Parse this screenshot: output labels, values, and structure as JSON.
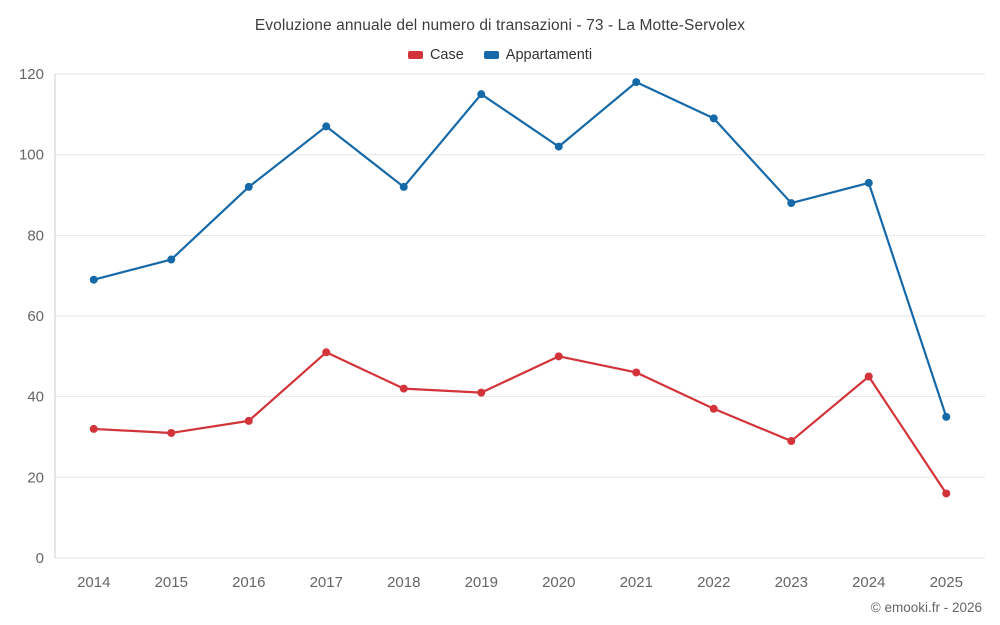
{
  "chart_data": {
    "type": "line",
    "title": "Evoluzione annuale del numero di transazioni - 73 - La Motte-Servolex",
    "categories": [
      "2014",
      "2015",
      "2016",
      "2017",
      "2018",
      "2019",
      "2020",
      "2021",
      "2022",
      "2023",
      "2024",
      "2025"
    ],
    "series": [
      {
        "name": "Case",
        "color": "#d2343a",
        "values": [
          32,
          31,
          34,
          51,
          42,
          41,
          50,
          46,
          37,
          29,
          45,
          16
        ]
      },
      {
        "name": "Appartamenti",
        "color": "#1669a8",
        "values": [
          69,
          74,
          92,
          107,
          92,
          115,
          102,
          118,
          109,
          88,
          93,
          35
        ]
      }
    ],
    "xlabel": "",
    "ylabel": "",
    "ylim": [
      0,
      120
    ],
    "yticks": [
      0,
      20,
      40,
      60,
      80,
      100,
      120
    ],
    "grid": "horizontal",
    "legend_position": "top",
    "grid_color": "#e6e6e6",
    "axis_line_color": "#cccccc",
    "tick_label_color": "#666666"
  },
  "footer": {
    "credit": "© emooki.fr - 2026"
  }
}
